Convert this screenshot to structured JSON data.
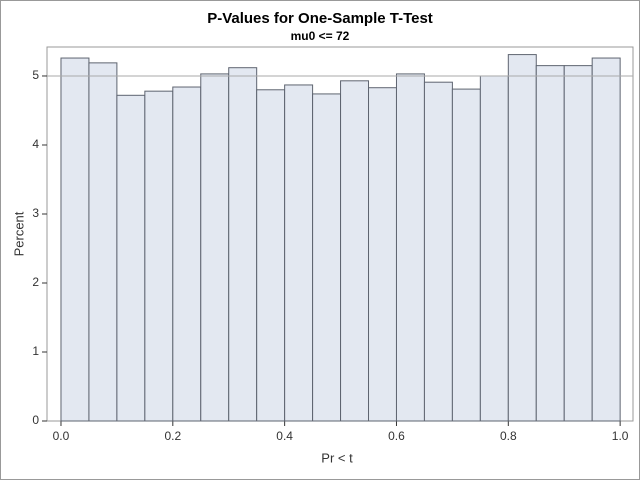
{
  "chart_data": {
    "type": "histogram",
    "title": "P-Values for One-Sample T-Test",
    "subtitle": "mu0 <= 72",
    "xlabel": "Pr < t",
    "ylabel": "Percent",
    "bins": [
      0,
      0.05,
      0.1,
      0.15,
      0.2,
      0.25,
      0.3,
      0.35,
      0.4,
      0.45,
      0.5,
      0.55,
      0.6,
      0.65,
      0.7,
      0.75,
      0.8,
      0.85,
      0.9,
      0.95,
      1
    ],
    "values": [
      5.26,
      5.19,
      4.72,
      4.78,
      4.84,
      5.03,
      5.12,
      4.8,
      4.87,
      4.74,
      4.93,
      4.83,
      5.03,
      4.91,
      4.81,
      5.0,
      5.31,
      5.15,
      5.15,
      5.26
    ],
    "color": "#e3e8f1",
    "edgecolor": "#5e6470",
    "reference_line": 5,
    "xlim": [
      -0.025,
      1.023
    ],
    "ylim": [
      0,
      5.42
    ],
    "xticks": [
      {
        "value": 0,
        "label": "0.0"
      },
      0.2,
      0.4,
      0.6,
      0.8,
      {
        "value": 1,
        "label": "1.0"
      }
    ],
    "yticks": [
      0,
      1,
      2,
      3,
      4,
      5
    ]
  }
}
